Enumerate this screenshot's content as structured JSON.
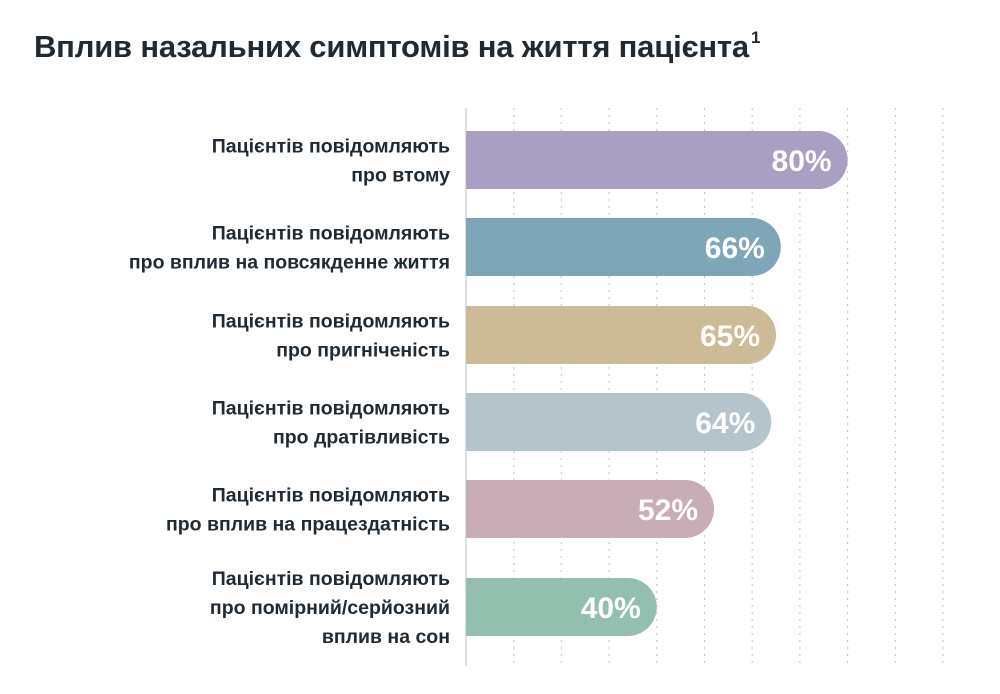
{
  "title": "Вплив назальних симптомів на життя пацієнта",
  "title_footnote": "1",
  "chart_data": {
    "type": "bar",
    "orientation": "horizontal",
    "title": "Вплив назальних симптомів на життя пацієнта",
    "categories": [
      [
        "Пацієнтів повідомляють",
        "про втому"
      ],
      [
        "Пацієнтів повідомляють",
        "про вплив на повсякденне життя"
      ],
      [
        "Пацієнтів повідомляють",
        "про пригніченість"
      ],
      [
        "Пацієнтів повідомляють",
        "про дратівливість"
      ],
      [
        "Пацієнтів повідомляють",
        "про вплив на працездатність"
      ],
      [
        "Пацієнтів повідомляють",
        "про помірний/серйозний",
        "вплив на сон"
      ]
    ],
    "values": [
      80,
      66,
      65,
      64,
      52,
      40
    ],
    "value_labels": [
      "80%",
      "66%",
      "65%",
      "64%",
      "52%",
      "40%"
    ],
    "colors": [
      "#a99fc2",
      "#7fa5b9",
      "#cdbb97",
      "#b5c4cb",
      "#c8adb6",
      "#93bfae"
    ],
    "xlim": [
      0,
      100
    ],
    "grid": true,
    "grid_style": "dotted vertical",
    "xlabel": "",
    "ylabel": ""
  }
}
